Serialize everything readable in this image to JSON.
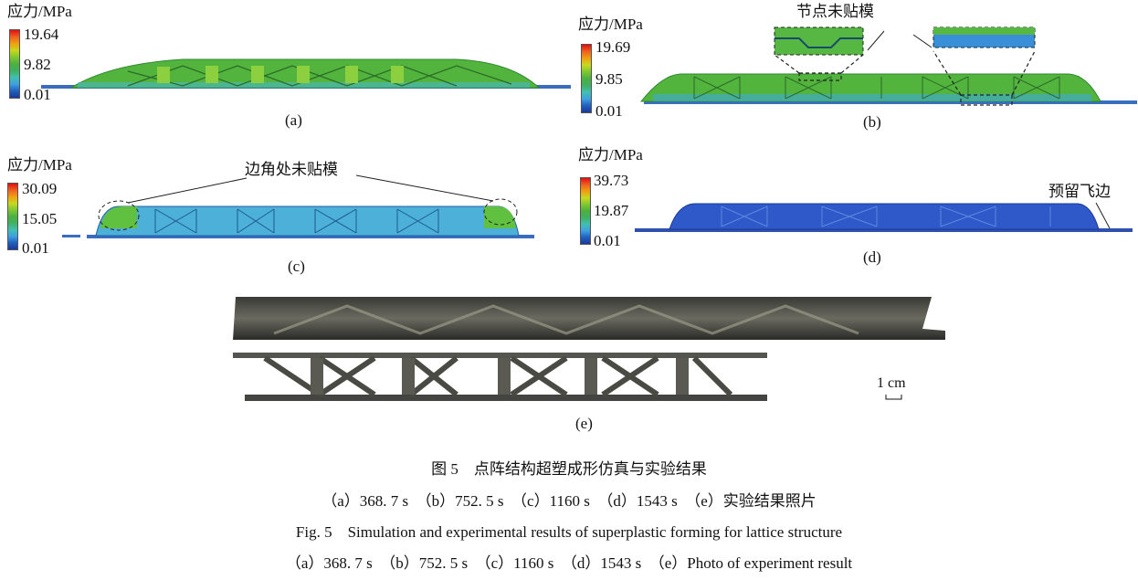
{
  "figure": {
    "panels": [
      {
        "id": "a",
        "legend_title": "应力/MPa",
        "ticks": [
          "19.64",
          "9.82",
          "0.01"
        ],
        "label": "(a)"
      },
      {
        "id": "b",
        "legend_title": "应力/MPa",
        "ticks": [
          "19.69",
          "9.85",
          "0.01"
        ],
        "label": "(b)",
        "annotation": "节点未贴模"
      },
      {
        "id": "c",
        "legend_title": "应力/MPa",
        "ticks": [
          "30.09",
          "15.05",
          "0.01"
        ],
        "label": "(c)",
        "annotation": "边角处未贴模"
      },
      {
        "id": "d",
        "legend_title": "应力/MPa",
        "ticks": [
          "39.73",
          "19.87",
          "0.01"
        ],
        "label": "(d)",
        "annotation": "预留飞边"
      },
      {
        "id": "e",
        "label": "(e)",
        "scale_bar": "1 cm"
      }
    ],
    "colors": {
      "high": "#e01010",
      "mid": "#4cb040",
      "low": "#1a3a9a"
    }
  },
  "caption": {
    "zh_title": "图 5　点阵结构超塑成形仿真与实验结果",
    "zh_sub": "（a）368. 7 s　（b）752. 5 s　（c）1160 s　（d）1543 s　（e）实验结果照片",
    "en_title": "Fig. 5　Simulation and experimental results of superplastic forming for lattice structure",
    "en_sub": "（a）368. 7 s　（b）752. 5 s　（c）1160 s　（d）1543 s　（e）Photo of experiment result"
  }
}
